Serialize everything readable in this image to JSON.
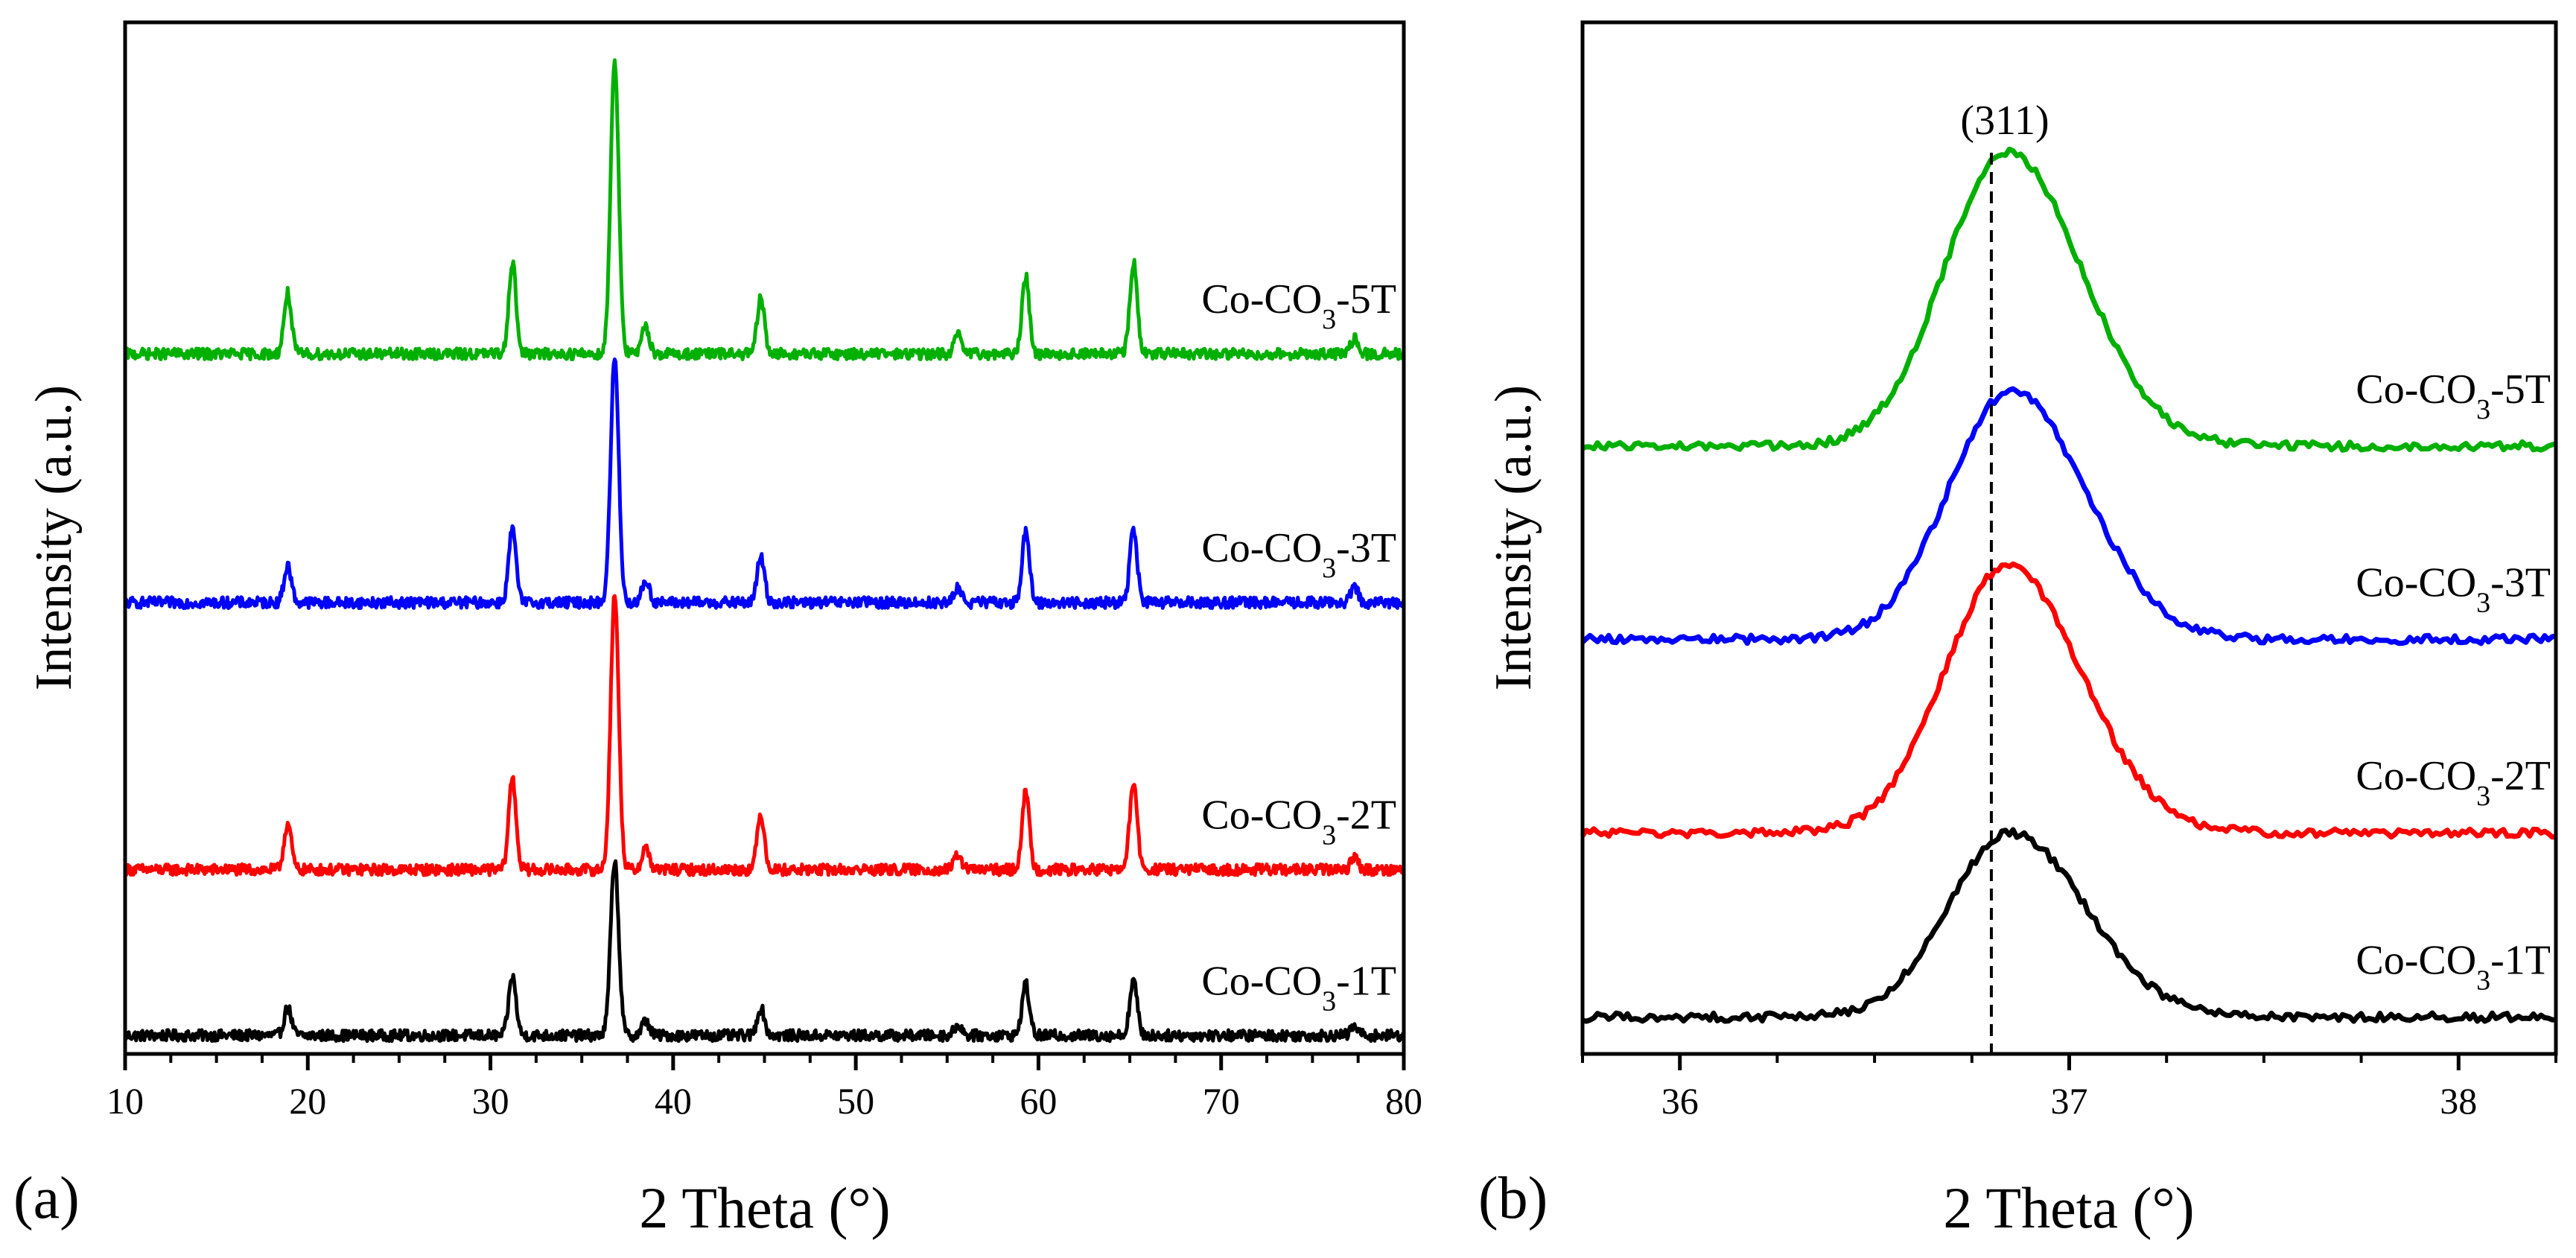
{
  "chart_data": [
    {
      "type": "line",
      "panel_label": "(a)",
      "title": "",
      "xlabel": "2 Theta (°)",
      "ylabel": "Intensity (a.u.)",
      "xlim": [
        10,
        80
      ],
      "ylim": [
        0,
        5.6
      ],
      "xticks": [
        10,
        20,
        30,
        40,
        50,
        60,
        70,
        80
      ],
      "xtick_labels": [
        "10",
        "20",
        "30",
        "40",
        "50",
        "60",
        "70",
        "80"
      ],
      "y_ticks_shown": false,
      "grid": false,
      "series": [
        {
          "name": "Co-CO3-1T",
          "label": {
            "base": "Co-CO",
            "sub": "3",
            "rest": "-1T"
          },
          "color": "#000000",
          "offset": 0.1,
          "peaks": [
            [
              18.9,
              0.15
            ],
            [
              31.2,
              0.32
            ],
            [
              36.8,
              0.95
            ],
            [
              38.5,
              0.08
            ],
            [
              44.8,
              0.15
            ],
            [
              55.6,
              0.06
            ],
            [
              59.3,
              0.28
            ],
            [
              65.2,
              0.3
            ],
            [
              77.3,
              0.05
            ]
          ]
        },
        {
          "name": "Co-CO3-2T",
          "label": {
            "base": "Co-CO",
            "sub": "3",
            "rest": "-2T"
          },
          "color": "#ff0000",
          "offset": 1.0,
          "peaks": [
            [
              18.9,
              0.25
            ],
            [
              31.2,
              0.5
            ],
            [
              36.8,
              1.5
            ],
            [
              38.5,
              0.12
            ],
            [
              44.8,
              0.3
            ],
            [
              55.6,
              0.08
            ],
            [
              59.3,
              0.42
            ],
            [
              65.2,
              0.48
            ],
            [
              77.3,
              0.07
            ]
          ]
        },
        {
          "name": "Co-CO3-3T",
          "label": {
            "base": "Co-CO",
            "sub": "3",
            "rest": "-3T"
          },
          "color": "#0000ff",
          "offset": 2.45,
          "peaks": [
            [
              18.9,
              0.2
            ],
            [
              31.2,
              0.4
            ],
            [
              36.8,
              1.33
            ],
            [
              38.5,
              0.12
            ],
            [
              44.8,
              0.25
            ],
            [
              55.6,
              0.08
            ],
            [
              59.3,
              0.38
            ],
            [
              65.2,
              0.4
            ],
            [
              77.3,
              0.08
            ]
          ]
        },
        {
          "name": "Co-CO3-5T",
          "label": {
            "base": "Co-CO",
            "sub": "3",
            "rest": "-5T"
          },
          "color": "#00b000",
          "offset": 3.8,
          "peaks": [
            [
              18.9,
              0.33
            ],
            [
              31.2,
              0.5
            ],
            [
              36.8,
              1.6
            ],
            [
              38.5,
              0.15
            ],
            [
              44.8,
              0.3
            ],
            [
              55.6,
              0.1
            ],
            [
              59.3,
              0.42
            ],
            [
              65.2,
              0.5
            ],
            [
              77.3,
              0.08
            ]
          ]
        }
      ]
    },
    {
      "type": "line",
      "panel_label": "(b)",
      "title": "",
      "xlabel": "2 Theta (°)",
      "ylabel": "Intensity (a.u.)",
      "xlim": [
        35.75,
        38.25
      ],
      "ylim": [
        0,
        5.6
      ],
      "xticks": [
        36,
        37,
        38
      ],
      "xtick_labels": [
        "36",
        "37",
        "38"
      ],
      "y_ticks_shown": false,
      "grid": false,
      "annotation": {
        "text": "(311)",
        "reference_x": 36.8,
        "line_style": "dashed"
      },
      "series": [
        {
          "name": "Co-CO3-1T",
          "label": {
            "base": "Co-CO",
            "sub": "3",
            "rest": "-1T"
          },
          "color": "#000000",
          "offset": 0.2,
          "peak_center": 36.85,
          "peak_height": 1.0
        },
        {
          "name": "Co-CO3-2T",
          "label": {
            "base": "Co-CO",
            "sub": "3",
            "rest": "-2T"
          },
          "color": "#ff0000",
          "offset": 1.2,
          "peak_center": 36.84,
          "peak_height": 1.45
        },
        {
          "name": "Co-CO3-3T",
          "label": {
            "base": "Co-CO",
            "sub": "3",
            "rest": "-3T"
          },
          "color": "#0000ff",
          "offset": 2.25,
          "peak_center": 36.85,
          "peak_height": 1.35
        },
        {
          "name": "Co-CO3-5T",
          "label": {
            "base": "Co-CO",
            "sub": "3",
            "rest": "-5T"
          },
          "color": "#00b000",
          "offset": 3.3,
          "peak_center": 36.84,
          "peak_height": 1.6
        }
      ]
    }
  ]
}
